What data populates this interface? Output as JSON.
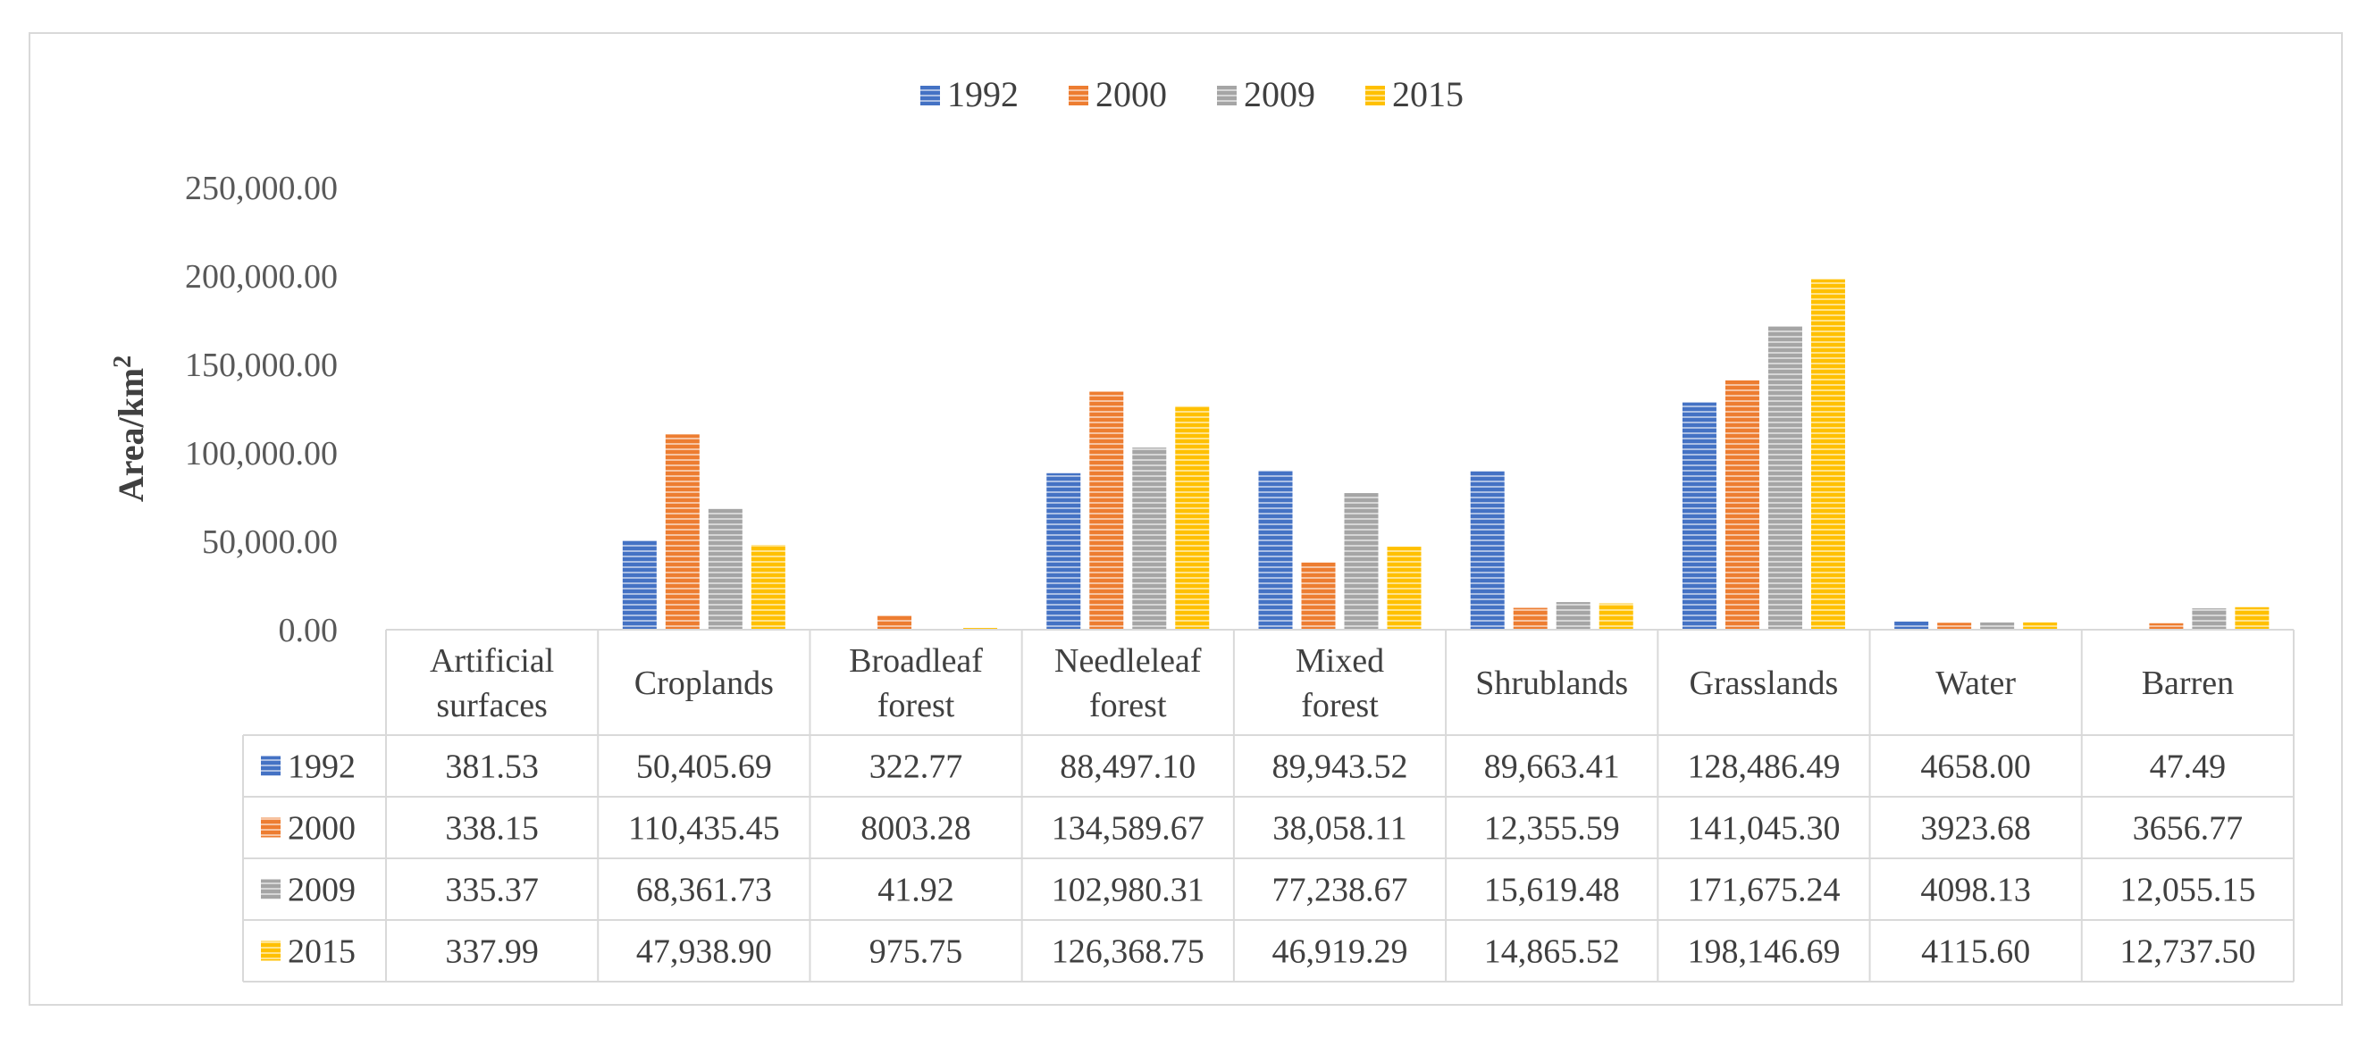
{
  "chart_data": {
    "type": "bar",
    "title": "",
    "xlabel": "",
    "ylabel": "Area/km",
    "ylabel_superscript": "2",
    "ylim": [
      0,
      250000
    ],
    "y_ticks": [
      "0.00",
      "50,000.00",
      "100,000.00",
      "150,000.00",
      "200,000.00",
      "250,000.00"
    ],
    "legend_position": "top-center",
    "grid": false,
    "categories": [
      [
        "Artificial",
        "surfaces"
      ],
      [
        "Croplands"
      ],
      [
        "Broadleaf",
        "forest"
      ],
      [
        "Needleleaf",
        "forest"
      ],
      [
        "Mixed",
        "forest"
      ],
      [
        "Shrublands"
      ],
      [
        "Grasslands"
      ],
      [
        "Water"
      ],
      [
        "Barren"
      ]
    ],
    "series": [
      {
        "name": "1992",
        "color": "#4472c4",
        "values": [
          381.53,
          50405.69,
          322.77,
          88497.1,
          89943.52,
          89663.41,
          128486.49,
          4658.0,
          47.49
        ],
        "labels": [
          "381.53",
          "50,405.69",
          "322.77",
          "88,497.10",
          "89,943.52",
          "89,663.41",
          "128,486.49",
          "4658.00",
          "47.49"
        ]
      },
      {
        "name": "2000",
        "color": "#ed7d31",
        "values": [
          338.15,
          110435.45,
          8003.28,
          134589.67,
          38058.11,
          12355.59,
          141045.3,
          3923.68,
          3656.77
        ],
        "labels": [
          "338.15",
          "110,435.45",
          "8003.28",
          "134,589.67",
          "38,058.11",
          "12,355.59",
          "141,045.30",
          "3923.68",
          "3656.77"
        ]
      },
      {
        "name": "2009",
        "color": "#a5a5a5",
        "values": [
          335.37,
          68361.73,
          41.92,
          102980.31,
          77238.67,
          15619.48,
          171675.24,
          4098.13,
          12055.15
        ],
        "labels": [
          "335.37",
          "68,361.73",
          "41.92",
          "102,980.31",
          "77,238.67",
          "15,619.48",
          "171,675.24",
          "4098.13",
          "12,055.15"
        ]
      },
      {
        "name": "2015",
        "color": "#ffc000",
        "values": [
          337.99,
          47938.9,
          975.75,
          126368.75,
          46919.29,
          14865.52,
          198146.69,
          4115.6,
          12737.5
        ],
        "labels": [
          "337.99",
          "47,938.90",
          "975.75",
          "126,368.75",
          "46,919.29",
          "14,865.52",
          "198,146.69",
          "4115.60",
          "12,737.50"
        ]
      }
    ]
  }
}
